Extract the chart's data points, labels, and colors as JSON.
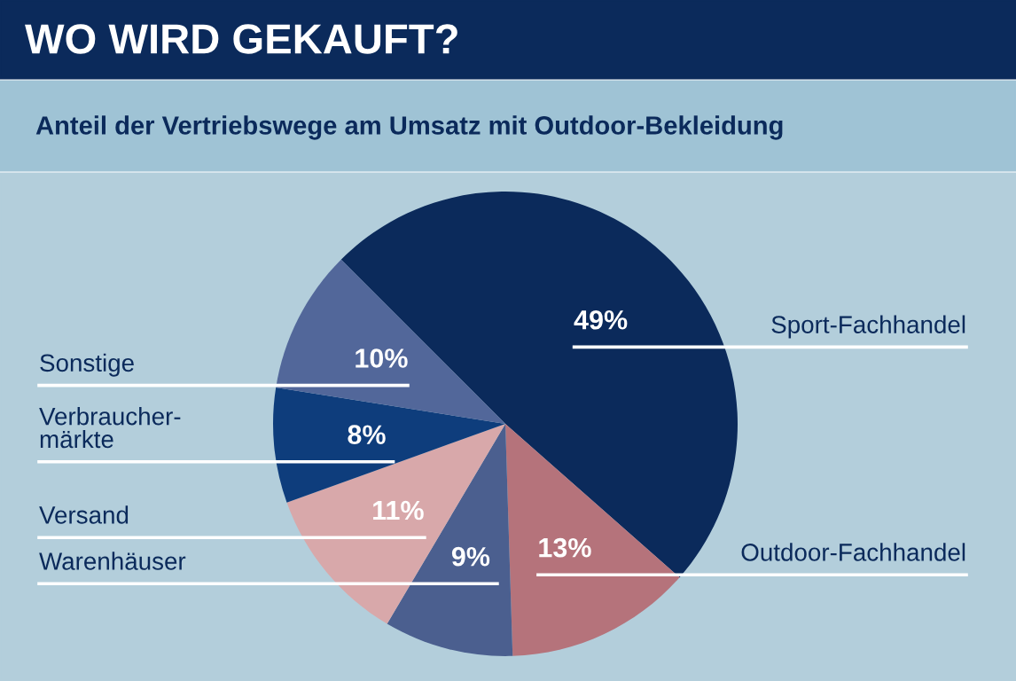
{
  "chart_data": {
    "type": "pie",
    "title": "WO WIRD GEKAUFT?",
    "subtitle": "Anteil der Vertriebswege am Umsatz mit Outdoor-Bekleidung",
    "categories": [
      "Sport-Fachhandel",
      "Outdoor-Fachhandel",
      "Warenhäuser",
      "Versand",
      "Verbraucher-\nmärkte",
      "Sonstige"
    ],
    "values": [
      49,
      13,
      9,
      11,
      8,
      10
    ],
    "value_labels": [
      "49%",
      "13%",
      "9%",
      "11%",
      "8%",
      "10%"
    ],
    "colors": [
      "#0b2a5b",
      "#b5737b",
      "#4b5f8f",
      "#d8a8aa",
      "#0e3d7c",
      "#52679a"
    ]
  }
}
